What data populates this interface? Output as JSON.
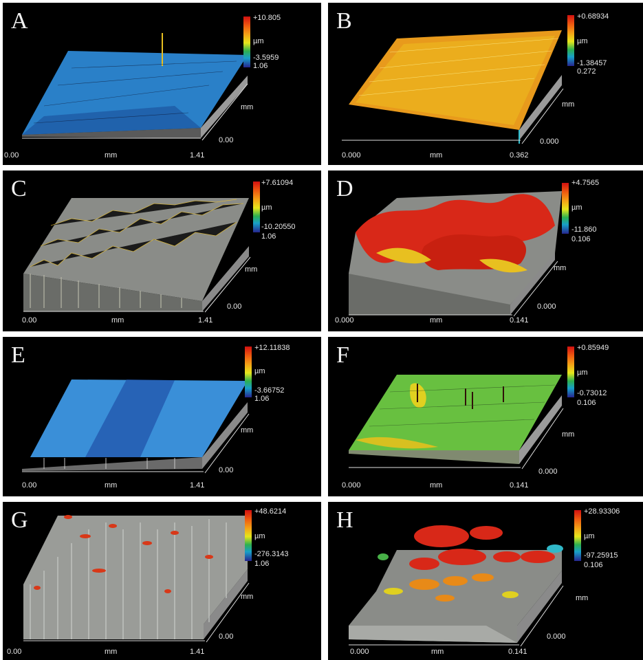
{
  "panels": [
    {
      "letter": "A",
      "max": "+10.805",
      "unit": "µm",
      "min": "-3.5959",
      "depth": "1.06",
      "axis_unit": "mm",
      "x_start": "0.00",
      "x_end": "1.41",
      "y_unit": "mm",
      "y_start": "0.00",
      "surface_color": "#2a80c8",
      "accent_color": "#1a4f99"
    },
    {
      "letter": "B",
      "max": "+0.68934",
      "unit": "µm",
      "min": "-1.38457",
      "depth": "0.272",
      "axis_unit": "mm",
      "x_start": "0.000",
      "x_end": "0.362",
      "y_unit": "mm",
      "y_start": "0.000",
      "surface_color": "#e89a1c",
      "accent_color": "#f0d020"
    },
    {
      "letter": "C",
      "max": "+7.61094",
      "unit": "µm",
      "min": "-10.20550",
      "depth": "1.06",
      "axis_unit": "mm",
      "x_start": "0.00",
      "x_end": "1.41",
      "y_unit": "mm",
      "y_start": "0.00",
      "surface_color": "#c8c8b0",
      "accent_color": "#e8c030"
    },
    {
      "letter": "D",
      "max": "+4.7565",
      "unit": "µm",
      "min": "-11.860",
      "depth": "0.106",
      "axis_unit": "mm",
      "x_start": "0.000",
      "x_end": "0.141",
      "y_unit": "mm",
      "y_start": "0.000",
      "surface_color": "#d82818",
      "accent_color": "#e8c020"
    },
    {
      "letter": "E",
      "max": "+12.11838",
      "unit": "µm",
      "min": "-3.66752",
      "depth": "1.06",
      "axis_unit": "mm",
      "x_start": "0.00",
      "x_end": "1.41",
      "y_unit": "mm",
      "y_start": "0.00",
      "surface_color": "#3a8fd8",
      "accent_color": "#2050a8"
    },
    {
      "letter": "F",
      "max": "+0.85949",
      "unit": "µm",
      "min": "-0.73012",
      "depth": "0.106",
      "axis_unit": "mm",
      "x_start": "0.000",
      "x_end": "0.141",
      "y_unit": "mm",
      "y_start": "0.000",
      "surface_color": "#68c040",
      "accent_color": "#e0d020"
    },
    {
      "letter": "G",
      "max": "+48.6214",
      "unit": "µm",
      "min": "-276.3143",
      "depth": "1.06",
      "axis_unit": "mm",
      "x_start": "0.00",
      "x_end": "1.41",
      "y_unit": "mm",
      "y_start": "0.00",
      "surface_color": "#b0b4b0",
      "accent_color": "#d83818"
    },
    {
      "letter": "H",
      "max": "+28.93306",
      "unit": "µm",
      "min": "-97.25915",
      "depth": "0.106",
      "axis_unit": "mm",
      "x_start": "0.000",
      "x_end": "0.141",
      "y_unit": "mm",
      "y_start": "0.000",
      "surface_color": "#d82818",
      "accent_color": "#e88a18"
    }
  ]
}
